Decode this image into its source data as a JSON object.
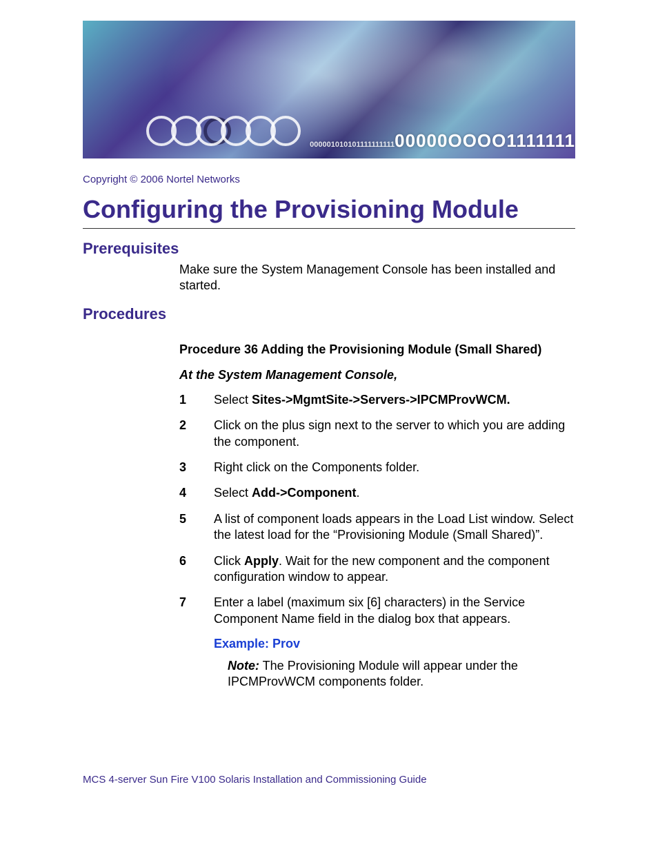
{
  "banner": {
    "ring_count": 6,
    "digits_small": "000001010101111111111",
    "digits_mid": "00000",
    "digits_big": "OOOO1111111"
  },
  "copyright": "Copyright © 2006 Nortel Networks",
  "title": "Configuring the Provisioning Module",
  "sections": {
    "prerequisites": {
      "heading": "Prerequisites",
      "text": "Make sure the System Management Console has been installed and started."
    },
    "procedures": {
      "heading": "Procedures",
      "proc_title": "Procedure 36  Adding the Provisioning Module (Small Shared)",
      "proc_sub": "At the System Management Console,",
      "steps": {
        "s1": {
          "num": "1",
          "pre": "Select ",
          "bold": "Sites->MgmtSite->Servers->IPCMProvWCM."
        },
        "s2": {
          "num": "2",
          "text": "Click on the plus sign next to the server to which you are adding the component."
        },
        "s3": {
          "num": "3",
          "text": "Right click on the Components folder."
        },
        "s4": {
          "num": "4",
          "pre": "Select ",
          "bold": "Add->Component",
          "post": "."
        },
        "s5": {
          "num": "5",
          "text": "A list of component loads appears in the Load List window. Select the latest load for the “Provisioning Module (Small Shared)”."
        },
        "s6": {
          "num": "6",
          "pre": "Click ",
          "bold": "Apply",
          "post": ". Wait for the new component and the component configuration window to appear."
        },
        "s7": {
          "num": "7",
          "text": "Enter a label (maximum six [6] characters) in the Service Component Name field in the dialog box that appears."
        }
      },
      "example": "Example: Prov",
      "note_label": "Note:",
      "note_text": "  The Provisioning Module will appear under the IPCMProvWCM components folder."
    }
  },
  "footer": "MCS 4-server Sun Fire V100 Solaris Installation and Commissioning Guide",
  "colors": {
    "heading": "#3a2a8a",
    "link_blue": "#1a3fd4",
    "text": "#000000"
  }
}
